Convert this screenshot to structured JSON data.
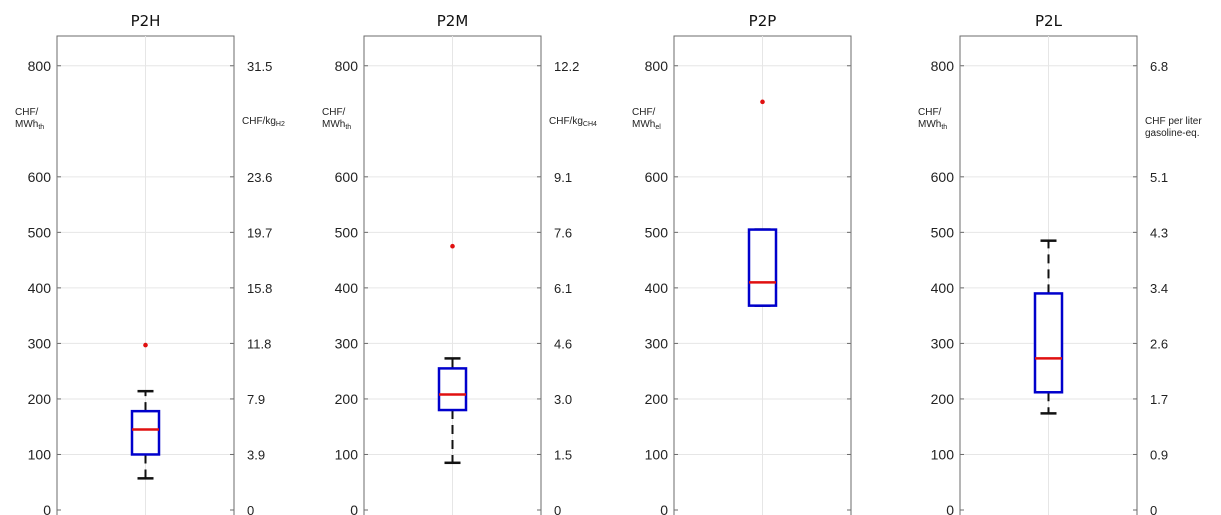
{
  "chart_data": [
    {
      "type": "box",
      "title": "P2H",
      "ylabel": {
        "main": "CHF/",
        "line2": "MWh",
        "sub": "th"
      },
      "ylabel_right": {
        "main": "CHF/kg",
        "sub": "H2"
      },
      "ylim": [
        0,
        860
      ],
      "yticks": [
        "0",
        "100",
        "200",
        "300",
        "400",
        "500",
        "600",
        "800"
      ],
      "yticks_right": [
        "0",
        "3.9",
        "7.9",
        "11.8",
        "15.8",
        "19.7",
        "23.6",
        "31.5"
      ],
      "box": {
        "whisker_low": 57,
        "q1": 100,
        "median": 145,
        "q3": 178,
        "whisker_high": 214,
        "outliers": [
          297
        ]
      },
      "grid": true
    },
    {
      "type": "box",
      "title": "P2M",
      "ylabel": {
        "main": "CHF/",
        "line2": "MWh",
        "sub": "th"
      },
      "ylabel_right": {
        "main": "CHF/kg",
        "sub": "CH4"
      },
      "ylim": [
        0,
        860
      ],
      "yticks": [
        "0",
        "100",
        "200",
        "300",
        "400",
        "500",
        "600",
        "800"
      ],
      "yticks_right": [
        "0",
        "1.5",
        "3.0",
        "4.6",
        "6.1",
        "7.6",
        "9.1",
        "12.2"
      ],
      "box": {
        "whisker_low": 85,
        "q1": 180,
        "median": 208,
        "q3": 255,
        "whisker_high": 273,
        "outliers": [
          475
        ]
      },
      "grid": true
    },
    {
      "type": "box",
      "title": "P2P",
      "ylabel": {
        "main": "CHF/",
        "line2": "MWh",
        "sub": "el"
      },
      "ylim": [
        0,
        860
      ],
      "yticks": [
        "0",
        "100",
        "200",
        "300",
        "400",
        "500",
        "600",
        "800"
      ],
      "box": {
        "whisker_low": 368,
        "q1": 368,
        "median": 410,
        "q3": 505,
        "whisker_high": 505,
        "outliers": [
          735
        ]
      },
      "grid": true
    },
    {
      "type": "box",
      "title": "P2L",
      "ylabel": {
        "main": "CHF/",
        "line2": "MWh",
        "sub": "th"
      },
      "ylabel_right": {
        "main": "CHF per liter",
        "line2": "gasoline-eq."
      },
      "ylim": [
        0,
        860
      ],
      "yticks": [
        "0",
        "100",
        "200",
        "300",
        "400",
        "500",
        "600",
        "800"
      ],
      "yticks_right": [
        "0",
        "0.9",
        "1.7",
        "2.6",
        "3.4",
        "4.3",
        "5.1",
        "6.8"
      ],
      "box": {
        "whisker_low": 174,
        "q1": 212,
        "median": 273,
        "q3": 390,
        "whisker_high": 485,
        "outliers": []
      },
      "grid": true
    }
  ],
  "colors": {
    "box": "#0000cc",
    "median": "#e01010",
    "whisker": "#111111",
    "outlier": "#e01010",
    "grid": "#e6e6e6",
    "axes": "#6b6b6b"
  }
}
